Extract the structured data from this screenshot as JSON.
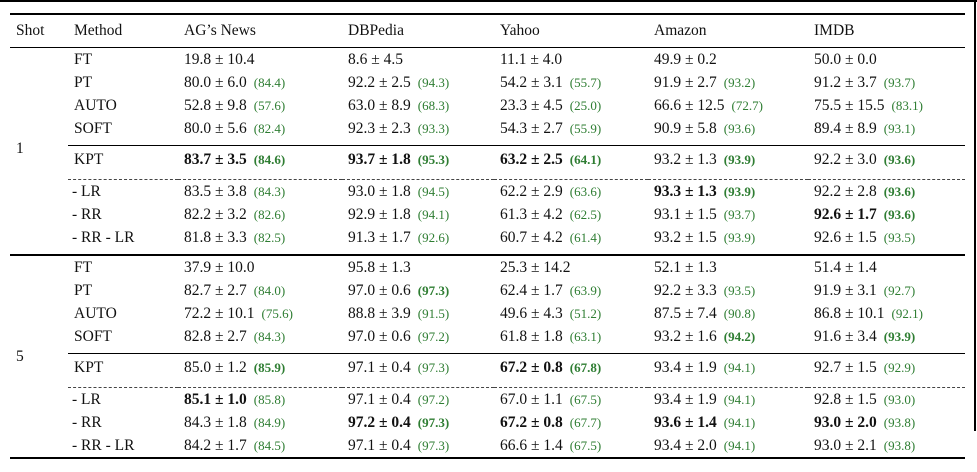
{
  "figure": {
    "kind": "academic results table"
  },
  "colors": {
    "accent_green": "#2e7d32",
    "rule_black": "#000000"
  },
  "table": {
    "columns": [
      "Shot",
      "Method",
      "AG’s News",
      "DBPedia",
      "Yahoo",
      "Amazon",
      "IMDB"
    ],
    "groups": [
      {
        "shot": "1",
        "sections": [
          {
            "rule": "none",
            "rows": [
              {
                "method": "FT",
                "cells": [
                  {
                    "v": "19.8 ± 10.4",
                    "b": false,
                    "n": "",
                    "nb": false
                  },
                  {
                    "v": "8.6 ± 4.5",
                    "b": false,
                    "n": "",
                    "nb": false
                  },
                  {
                    "v": "11.1 ± 4.0",
                    "b": false,
                    "n": "",
                    "nb": false
                  },
                  {
                    "v": "49.9 ± 0.2",
                    "b": false,
                    "n": "",
                    "nb": false
                  },
                  {
                    "v": "50.0 ± 0.0",
                    "b": false,
                    "n": "",
                    "nb": false
                  }
                ]
              },
              {
                "method": "PT",
                "cells": [
                  {
                    "v": "80.0 ± 6.0",
                    "b": false,
                    "n": "(84.4)",
                    "nb": false
                  },
                  {
                    "v": "92.2 ± 2.5",
                    "b": false,
                    "n": "(94.3)",
                    "nb": false
                  },
                  {
                    "v": "54.2 ± 3.1",
                    "b": false,
                    "n": "(55.7)",
                    "nb": false
                  },
                  {
                    "v": "91.9 ± 2.7",
                    "b": false,
                    "n": "(93.2)",
                    "nb": false
                  },
                  {
                    "v": "91.2 ± 3.7",
                    "b": false,
                    "n": "(93.7)",
                    "nb": false
                  }
                ]
              },
              {
                "method": "AUTO",
                "cells": [
                  {
                    "v": "52.8 ± 9.8",
                    "b": false,
                    "n": "(57.6)",
                    "nb": false
                  },
                  {
                    "v": "63.0 ± 8.9",
                    "b": false,
                    "n": "(68.3)",
                    "nb": false
                  },
                  {
                    "v": "23.3 ± 4.5",
                    "b": false,
                    "n": "(25.0)",
                    "nb": false
                  },
                  {
                    "v": "66.6 ± 12.5",
                    "b": false,
                    "n": "(72.7)",
                    "nb": false
                  },
                  {
                    "v": "75.5 ± 15.5",
                    "b": false,
                    "n": "(83.1)",
                    "nb": false
                  }
                ]
              },
              {
                "method": "SOFT",
                "cells": [
                  {
                    "v": "80.0 ± 5.6",
                    "b": false,
                    "n": "(82.4)",
                    "nb": false
                  },
                  {
                    "v": "92.3 ± 2.3",
                    "b": false,
                    "n": "(93.3)",
                    "nb": false
                  },
                  {
                    "v": "54.3 ± 2.7",
                    "b": false,
                    "n": "(55.9)",
                    "nb": false
                  },
                  {
                    "v": "90.9 ± 5.8",
                    "b": false,
                    "n": "(93.6)",
                    "nb": false
                  },
                  {
                    "v": "89.4 ± 8.9",
                    "b": false,
                    "n": "(93.1)",
                    "nb": false
                  }
                ]
              }
            ]
          },
          {
            "rule": "solid",
            "rows": [
              {
                "method": "KPT",
                "cells": [
                  {
                    "v": "83.7 ± 3.5",
                    "b": true,
                    "n": "(84.6)",
                    "nb": true
                  },
                  {
                    "v": "93.7 ± 1.8",
                    "b": true,
                    "n": "(95.3)",
                    "nb": true
                  },
                  {
                    "v": "63.2 ± 2.5",
                    "b": true,
                    "n": "(64.1)",
                    "nb": true
                  },
                  {
                    "v": "93.2 ± 1.3",
                    "b": false,
                    "n": "(93.9)",
                    "nb": true
                  },
                  {
                    "v": "92.2 ± 3.0",
                    "b": false,
                    "n": "(93.6)",
                    "nb": true
                  }
                ]
              }
            ]
          },
          {
            "rule": "dashed",
            "rows": [
              {
                "method": "- LR",
                "cells": [
                  {
                    "v": "83.5 ± 3.8",
                    "b": false,
                    "n": "(84.3)",
                    "nb": false
                  },
                  {
                    "v": "93.0 ± 1.8",
                    "b": false,
                    "n": "(94.5)",
                    "nb": false
                  },
                  {
                    "v": "62.2 ± 2.9",
                    "b": false,
                    "n": "(63.6)",
                    "nb": false
                  },
                  {
                    "v": "93.3 ± 1.3",
                    "b": true,
                    "n": "(93.9)",
                    "nb": true
                  },
                  {
                    "v": "92.2 ± 2.8",
                    "b": false,
                    "n": "(93.6)",
                    "nb": true
                  }
                ]
              },
              {
                "method": "- RR",
                "cells": [
                  {
                    "v": "82.2 ± 3.2",
                    "b": false,
                    "n": "(82.6)",
                    "nb": false
                  },
                  {
                    "v": "92.9 ± 1.8",
                    "b": false,
                    "n": "(94.1)",
                    "nb": false
                  },
                  {
                    "v": "61.3 ± 4.2",
                    "b": false,
                    "n": "(62.5)",
                    "nb": false
                  },
                  {
                    "v": "93.1 ± 1.5",
                    "b": false,
                    "n": "(93.7)",
                    "nb": false
                  },
                  {
                    "v": "92.6 ± 1.7",
                    "b": true,
                    "n": "(93.6)",
                    "nb": true
                  }
                ]
              },
              {
                "method": "- RR - LR",
                "cells": [
                  {
                    "v": "81.8 ± 3.3",
                    "b": false,
                    "n": "(82.5)",
                    "nb": false
                  },
                  {
                    "v": "91.3 ± 1.7",
                    "b": false,
                    "n": "(92.6)",
                    "nb": false
                  },
                  {
                    "v": "60.7 ± 4.2",
                    "b": false,
                    "n": "(61.4)",
                    "nb": false
                  },
                  {
                    "v": "93.2 ± 1.5",
                    "b": false,
                    "n": "(93.9)",
                    "nb": false
                  },
                  {
                    "v": "92.6 ± 1.5",
                    "b": false,
                    "n": "(93.5)",
                    "nb": false
                  }
                ]
              }
            ]
          }
        ]
      },
      {
        "shot": "5",
        "sections": [
          {
            "rule": "none",
            "rows": [
              {
                "method": "FT",
                "cells": [
                  {
                    "v": "37.9 ± 10.0",
                    "b": false,
                    "n": "",
                    "nb": false
                  },
                  {
                    "v": "95.8 ± 1.3",
                    "b": false,
                    "n": "",
                    "nb": false
                  },
                  {
                    "v": "25.3 ± 14.2",
                    "b": false,
                    "n": "",
                    "nb": false
                  },
                  {
                    "v": "52.1 ± 1.3",
                    "b": false,
                    "n": "",
                    "nb": false
                  },
                  {
                    "v": "51.4 ± 1.4",
                    "b": false,
                    "n": "",
                    "nb": false
                  }
                ]
              },
              {
                "method": "PT",
                "cells": [
                  {
                    "v": "82.7 ± 2.7",
                    "b": false,
                    "n": "(84.0)",
                    "nb": false
                  },
                  {
                    "v": "97.0 ± 0.6",
                    "b": false,
                    "n": "(97.3)",
                    "nb": true
                  },
                  {
                    "v": "62.4 ± 1.7",
                    "b": false,
                    "n": "(63.9)",
                    "nb": false
                  },
                  {
                    "v": "92.2 ± 3.3",
                    "b": false,
                    "n": "(93.5)",
                    "nb": false
                  },
                  {
                    "v": "91.9 ± 3.1",
                    "b": false,
                    "n": "(92.7)",
                    "nb": false
                  }
                ]
              },
              {
                "method": "AUTO",
                "cells": [
                  {
                    "v": "72.2 ± 10.1",
                    "b": false,
                    "n": "(75.6)",
                    "nb": false
                  },
                  {
                    "v": "88.8 ± 3.9",
                    "b": false,
                    "n": "(91.5)",
                    "nb": false
                  },
                  {
                    "v": "49.6 ± 4.3",
                    "b": false,
                    "n": "(51.2)",
                    "nb": false
                  },
                  {
                    "v": "87.5 ± 7.4",
                    "b": false,
                    "n": "(90.8)",
                    "nb": false
                  },
                  {
                    "v": "86.8 ± 10.1",
                    "b": false,
                    "n": "(92.1)",
                    "nb": false
                  }
                ]
              },
              {
                "method": "SOFT",
                "cells": [
                  {
                    "v": "82.8 ± 2.7",
                    "b": false,
                    "n": "(84.3)",
                    "nb": false
                  },
                  {
                    "v": "97.0 ± 0.6",
                    "b": false,
                    "n": "(97.2)",
                    "nb": false
                  },
                  {
                    "v": "61.8 ± 1.8",
                    "b": false,
                    "n": "(63.1)",
                    "nb": false
                  },
                  {
                    "v": "93.2 ± 1.6",
                    "b": false,
                    "n": "(94.2)",
                    "nb": true
                  },
                  {
                    "v": "91.6 ± 3.4",
                    "b": false,
                    "n": "(93.9)",
                    "nb": true
                  }
                ]
              }
            ]
          },
          {
            "rule": "solid",
            "rows": [
              {
                "method": "KPT",
                "cells": [
                  {
                    "v": "85.0 ± 1.2",
                    "b": false,
                    "n": "(85.9)",
                    "nb": true
                  },
                  {
                    "v": "97.1 ± 0.4",
                    "b": false,
                    "n": "(97.3)",
                    "nb": false
                  },
                  {
                    "v": "67.2 ± 0.8",
                    "b": true,
                    "n": "(67.8)",
                    "nb": true
                  },
                  {
                    "v": "93.4 ± 1.9",
                    "b": false,
                    "n": "(94.1)",
                    "nb": false
                  },
                  {
                    "v": "92.7 ± 1.5",
                    "b": false,
                    "n": "(92.9)",
                    "nb": false
                  }
                ]
              }
            ]
          },
          {
            "rule": "dashed",
            "rows": [
              {
                "method": "- LR",
                "cells": [
                  {
                    "v": "85.1 ± 1.0",
                    "b": true,
                    "n": "(85.8)",
                    "nb": false
                  },
                  {
                    "v": "97.1 ± 0.4",
                    "b": false,
                    "n": "(97.2)",
                    "nb": false
                  },
                  {
                    "v": "67.0 ± 1.1",
                    "b": false,
                    "n": "(67.5)",
                    "nb": false
                  },
                  {
                    "v": "93.4 ± 1.9",
                    "b": false,
                    "n": "(94.1)",
                    "nb": false
                  },
                  {
                    "v": "92.8 ± 1.5",
                    "b": false,
                    "n": "(93.0)",
                    "nb": false
                  }
                ]
              },
              {
                "method": "- RR",
                "cells": [
                  {
                    "v": "84.3 ± 1.8",
                    "b": false,
                    "n": "(84.9)",
                    "nb": false
                  },
                  {
                    "v": "97.2 ± 0.4",
                    "b": true,
                    "n": "(97.3)",
                    "nb": true
                  },
                  {
                    "v": "67.2 ± 0.8",
                    "b": true,
                    "n": "(67.7)",
                    "nb": false
                  },
                  {
                    "v": "93.6 ± 1.4",
                    "b": true,
                    "n": "(94.1)",
                    "nb": false
                  },
                  {
                    "v": "93.0 ± 2.0",
                    "b": true,
                    "n": "(93.8)",
                    "nb": false
                  }
                ]
              },
              {
                "method": "- RR - LR",
                "cells": [
                  {
                    "v": "84.2 ± 1.7",
                    "b": false,
                    "n": "(84.5)",
                    "nb": false
                  },
                  {
                    "v": "97.1 ± 0.4",
                    "b": false,
                    "n": "(97.3)",
                    "nb": false
                  },
                  {
                    "v": "66.6 ± 1.4",
                    "b": false,
                    "n": "(67.5)",
                    "nb": false
                  },
                  {
                    "v": "93.4 ± 2.0",
                    "b": false,
                    "n": "(94.1)",
                    "nb": false
                  },
                  {
                    "v": "93.0 ± 2.1",
                    "b": false,
                    "n": "(93.8)",
                    "nb": false
                  }
                ]
              }
            ]
          }
        ]
      }
    ]
  }
}
